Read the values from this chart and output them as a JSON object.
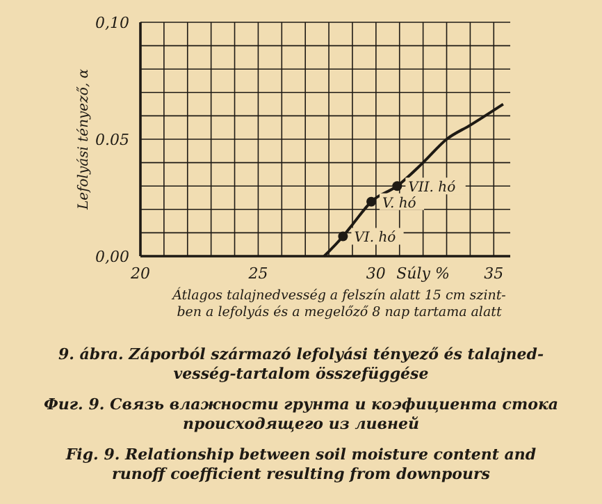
{
  "chart_data": {
    "type": "line",
    "xlabel": "Átlagos talajnedvesség a felszín alatt 15 cm szint-\nben a lefolyás és a megelőző 8 nap tartama alatt",
    "ylabel": "Lefolyási tényező, α",
    "series": [
      {
        "color": "#1e1a14",
        "x": [
          27.8,
          28.6,
          29,
          29.8,
          30.9,
          32,
          33,
          34,
          35.4
        ],
        "values": [
          0,
          0.0085,
          0.0135,
          0.0233,
          0.03,
          0.04,
          0.05,
          0.056,
          0.065
        ]
      },
      {
        "type": "scatter",
        "color": "#1e1a14",
        "marker": "circle",
        "x": [
          28.6,
          29.8,
          30.9
        ],
        "values": [
          0.0085,
          0.0233,
          0.03
        ]
      }
    ],
    "xlim": [
      20,
      35.7
    ],
    "ylim": [
      0,
      0.1
    ],
    "xticks": [
      20,
      {
        "value": 21,
        "label": null
      },
      {
        "value": 22,
        "label": null
      },
      {
        "value": 23,
        "label": null
      },
      {
        "value": 24,
        "label": null
      },
      25,
      {
        "value": 26,
        "label": null
      },
      {
        "value": 27,
        "label": null
      },
      {
        "value": 28,
        "label": null
      },
      {
        "value": 29,
        "label": null
      },
      30,
      {
        "value": 31,
        "label": null
      },
      {
        "value": 32,
        "label": null
      },
      {
        "value": 33,
        "label": null
      },
      {
        "value": 34,
        "label": null
      },
      35
    ],
    "yticks": [
      {
        "value": 0,
        "label": "0,00"
      },
      {
        "value": 0.01,
        "label": null
      },
      {
        "value": 0.02,
        "label": null
      },
      {
        "value": 0.03,
        "label": null
      },
      {
        "value": 0.04,
        "label": null
      },
      {
        "value": 0.05,
        "label": "0.05"
      },
      {
        "value": 0.06,
        "label": null
      },
      {
        "value": 0.07,
        "label": null
      },
      {
        "value": 0.08,
        "label": null
      },
      {
        "value": 0.09,
        "label": null
      },
      {
        "value": 0.1,
        "label": "0,10"
      }
    ],
    "grid": true,
    "annotations": [
      {
        "text": "VI. hó",
        "x": 28.6,
        "y": 0.0085
      },
      {
        "text": "V. hó",
        "x": 29.8,
        "y": 0.0233
      },
      {
        "text": "VII. hó",
        "x": 30.9,
        "y": 0.03
      },
      "Súly %",
      "9. ábra. Záporból származó lefolyási tényező és talajned-\nvesség-tartalom összefüggése",
      "Фиг. 9. Связь влажности грунта и коэфициента стока\nпроисходящего из ливней",
      "Fig. 9. Relationship between soil moisture content and\nrunoff coefficient resulting from downpours"
    ]
  }
}
